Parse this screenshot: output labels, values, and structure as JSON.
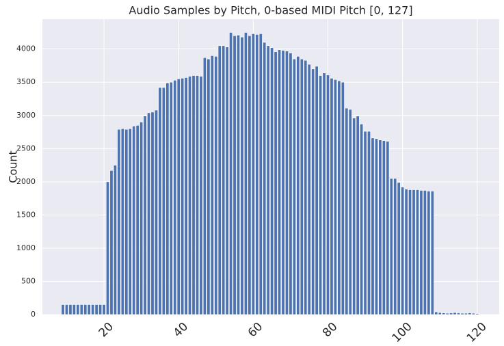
{
  "chart_data": {
    "type": "bar",
    "title": "Audio Samples by Pitch, 0-based MIDI Pitch [0, 127]",
    "y_label": "Count",
    "color": "#4c72b0",
    "grid": true,
    "x": [
      9,
      10,
      11,
      12,
      13,
      14,
      15,
      16,
      17,
      18,
      19,
      20,
      21,
      22,
      23,
      24,
      25,
      26,
      27,
      28,
      29,
      30,
      31,
      32,
      33,
      34,
      35,
      36,
      37,
      38,
      39,
      40,
      41,
      42,
      43,
      44,
      45,
      46,
      47,
      48,
      49,
      50,
      51,
      52,
      53,
      54,
      55,
      56,
      57,
      58,
      59,
      60,
      61,
      62,
      63,
      64,
      65,
      66,
      67,
      68,
      69,
      70,
      71,
      72,
      73,
      74,
      75,
      76,
      77,
      78,
      79,
      80,
      81,
      82,
      83,
      84,
      85,
      86,
      87,
      88,
      89,
      90,
      91,
      92,
      93,
      94,
      95,
      96,
      97,
      98,
      99,
      100,
      101,
      102,
      103,
      104,
      105,
      106,
      107,
      108,
      109,
      110,
      111,
      112,
      113,
      114,
      115,
      116,
      117,
      118,
      119,
      120
    ],
    "values": [
      150,
      150,
      150,
      150,
      150,
      150,
      150,
      150,
      150,
      150,
      150,
      150,
      2000,
      2170,
      2250,
      2790,
      2800,
      2790,
      2800,
      2840,
      2850,
      2900,
      2990,
      3040,
      3050,
      3080,
      3420,
      3420,
      3490,
      3500,
      3530,
      3550,
      3560,
      3570,
      3590,
      3600,
      3600,
      3590,
      3870,
      3850,
      3900,
      3890,
      4050,
      4050,
      4030,
      4250,
      4200,
      4210,
      4180,
      4250,
      4200,
      4230,
      4220,
      4230,
      4100,
      4050,
      4020,
      3960,
      3990,
      3980,
      3970,
      3940,
      3850,
      3890,
      3850,
      3830,
      3770,
      3700,
      3740,
      3600,
      3640,
      3610,
      3560,
      3540,
      3520,
      3500,
      3110,
      3090,
      2960,
      2990,
      2870,
      2760,
      2760,
      2660,
      2650,
      2630,
      2620,
      2610,
      2050,
      2050,
      1990,
      1920,
      1890,
      1880,
      1880,
      1880,
      1870,
      1870,
      1860,
      1860,
      40,
      30,
      25,
      20,
      25,
      30,
      25,
      20,
      20,
      25,
      20,
      15
    ],
    "xlim": [
      3.5,
      125.9
    ],
    "ylim": [
      0,
      4450
    ],
    "xticks": [
      20,
      40,
      60,
      80,
      100,
      120
    ],
    "yticks": [
      0,
      500,
      1000,
      1500,
      2000,
      2500,
      3000,
      3500,
      4000
    ]
  }
}
